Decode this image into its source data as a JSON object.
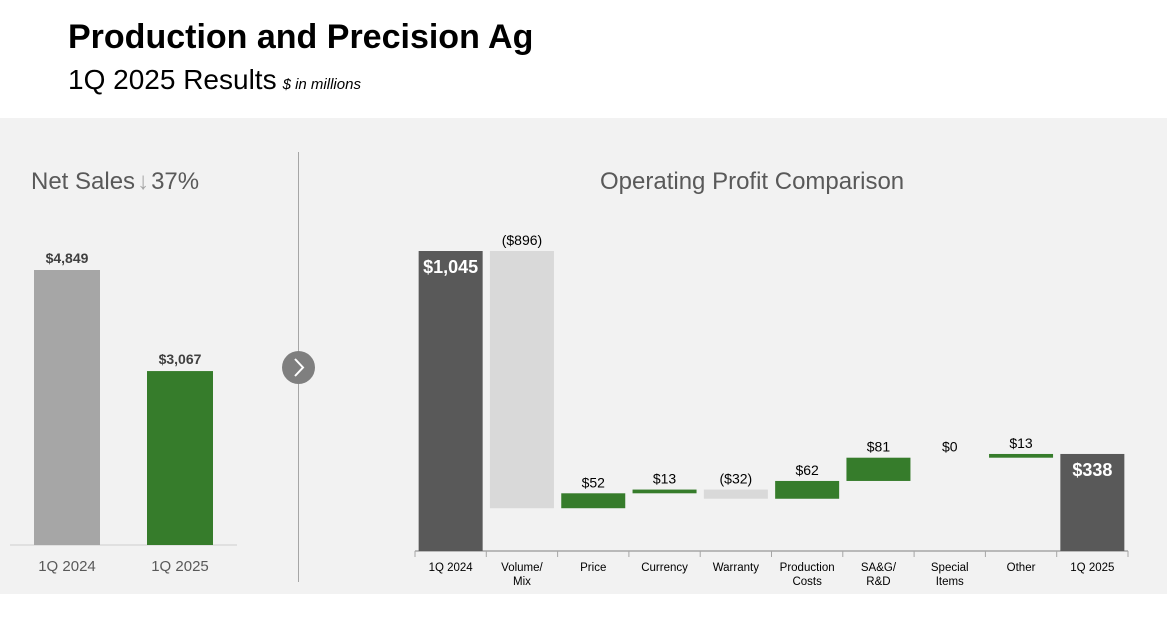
{
  "header": {
    "title": "Production and Precision Ag",
    "subtitle": "1Q 2025 Results",
    "units": "$ in millions"
  },
  "colors": {
    "dark_bar": "#595959",
    "light_bar": "#d9d9d9",
    "gray_bar": "#a6a6a6",
    "green": "#367c2b",
    "panel_bg": "#f2f2f2",
    "text_gray": "#595959"
  },
  "chart_data": [
    {
      "type": "bar",
      "title": "Net Sales",
      "title_change": "37%",
      "title_change_direction": "down",
      "categories": [
        "1Q 2024",
        "1Q 2025"
      ],
      "values": [
        4849,
        3067
      ],
      "labels": [
        "$4,849",
        "$3,067"
      ],
      "bar_colors": [
        "#a6a6a6",
        "#367c2b"
      ]
    },
    {
      "type": "bar",
      "subtype": "waterfall",
      "title": "Operating Profit Comparison",
      "categories": [
        "1Q 2024",
        "Volume/\nMix",
        "Price",
        "Currency",
        "Warranty",
        "Production\nCosts",
        "SA&G/\nR&D",
        "Special\nItems",
        "Other",
        "1Q 2025"
      ],
      "steps": [
        {
          "kind": "total",
          "value": 1045,
          "label": "$1,045"
        },
        {
          "kind": "delta",
          "value": -896,
          "label": "($896)"
        },
        {
          "kind": "delta",
          "value": 52,
          "label": "$52"
        },
        {
          "kind": "delta",
          "value": 13,
          "label": "$13"
        },
        {
          "kind": "delta",
          "value": -32,
          "label": "($32)"
        },
        {
          "kind": "delta",
          "value": 62,
          "label": "$62"
        },
        {
          "kind": "delta",
          "value": 81,
          "label": "$81"
        },
        {
          "kind": "delta",
          "value": 0,
          "label": "$0"
        },
        {
          "kind": "delta",
          "value": 13,
          "label": "$13"
        },
        {
          "kind": "total",
          "value": 338,
          "label": "$338"
        }
      ]
    }
  ]
}
